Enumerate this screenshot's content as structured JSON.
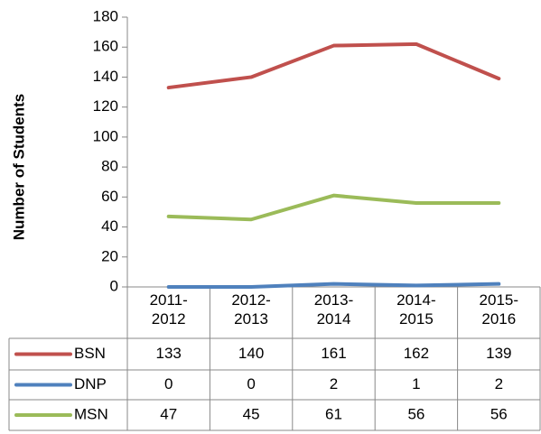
{
  "chart_data": {
    "type": "line",
    "y_label": "Number of Students",
    "categories": [
      "2011-2012",
      "2012-2013",
      "2013-2014",
      "2014-2015",
      "2015-2016"
    ],
    "series": [
      {
        "name": "BSN",
        "color": "#c0504d",
        "values": [
          133,
          140,
          161,
          162,
          139
        ]
      },
      {
        "name": "DNP",
        "color": "#4f81bd",
        "values": [
          0,
          0,
          2,
          1,
          2
        ]
      },
      {
        "name": "MSN",
        "color": "#9bbb59",
        "values": [
          47,
          45,
          61,
          56,
          56
        ]
      }
    ],
    "ylim": [
      0,
      180
    ],
    "yticks": [
      0,
      20,
      40,
      60,
      80,
      100,
      120,
      140,
      160,
      180
    ],
    "grid": false
  }
}
